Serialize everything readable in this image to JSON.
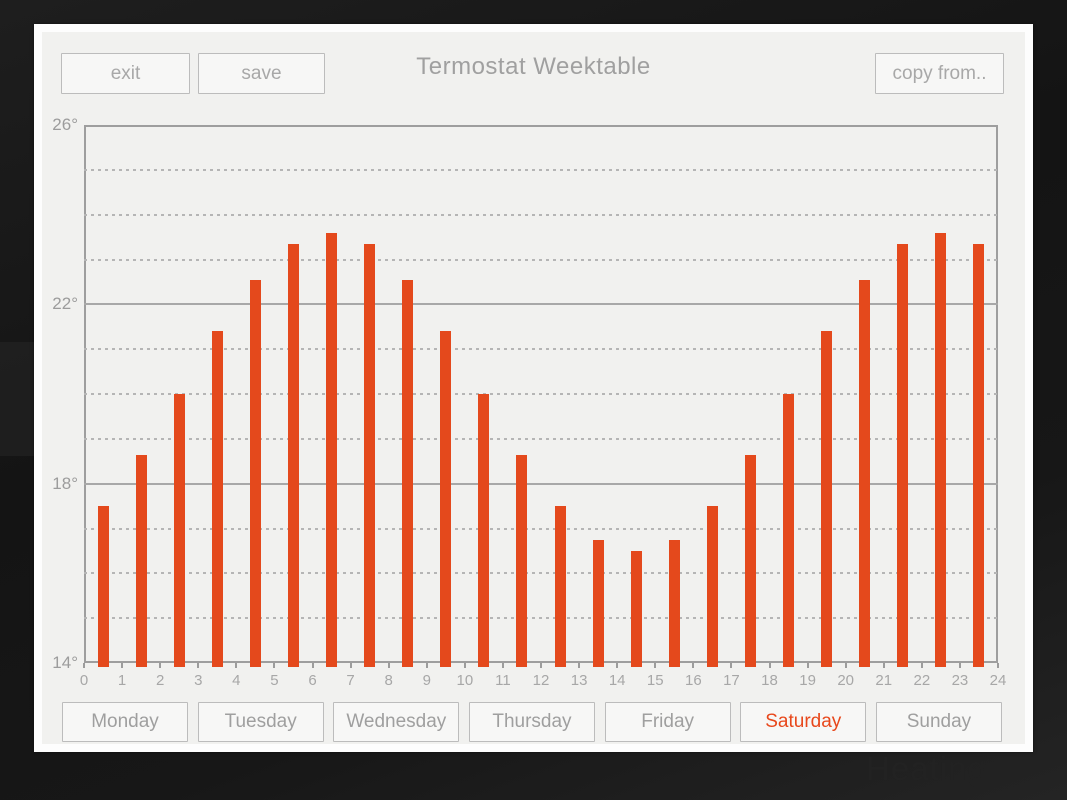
{
  "header": {
    "title": "Termostat Weektable",
    "exit_label": "exit",
    "save_label": "save",
    "copy_from_label": "copy from.."
  },
  "background_watermark": "Heating",
  "days": [
    {
      "label": "Monday",
      "selected": false
    },
    {
      "label": "Tuesday",
      "selected": false
    },
    {
      "label": "Wednesday",
      "selected": false
    },
    {
      "label": "Thursday",
      "selected": false
    },
    {
      "label": "Friday",
      "selected": false
    },
    {
      "label": "Saturday",
      "selected": true
    },
    {
      "label": "Sunday",
      "selected": false
    }
  ],
  "colors": {
    "accent": "#e8481c",
    "bar": "#e4491c",
    "panel_bg": "#f1f1ef",
    "button_bg": "#f7f7f6",
    "button_border": "#bcbcbc",
    "muted_text": "#a3a3a3",
    "axis_gray": "#9e9e9e"
  },
  "chart_data": {
    "type": "bar",
    "title": "",
    "xlabel": "",
    "ylabel": "",
    "hours": [
      0,
      1,
      2,
      3,
      4,
      5,
      6,
      7,
      8,
      9,
      10,
      11,
      12,
      13,
      14,
      15,
      16,
      17,
      18,
      19,
      20,
      21,
      22,
      23
    ],
    "values": [
      17.5,
      18.65,
      20.0,
      21.4,
      22.55,
      23.35,
      23.6,
      23.35,
      22.55,
      21.4,
      20.0,
      18.65,
      17.5,
      16.75,
      16.5,
      16.75,
      17.5,
      18.65,
      20.0,
      21.4,
      22.55,
      23.35,
      23.6,
      23.35
    ],
    "bar_center_offset": 0.5,
    "ylim": [
      14,
      26
    ],
    "yticks_major": [
      26,
      22,
      18,
      14
    ],
    "ytick_labels": [
      "26°",
      "22°",
      "18°",
      "14°"
    ],
    "yticks_minor": [
      25,
      24,
      23,
      21,
      20,
      19,
      17,
      16,
      15
    ],
    "xticks": [
      0,
      1,
      2,
      3,
      4,
      5,
      6,
      7,
      8,
      9,
      10,
      11,
      12,
      13,
      14,
      15,
      16,
      17,
      18,
      19,
      20,
      21,
      22,
      23,
      24
    ],
    "grid": "major solid, minor dashed horizontal",
    "legend": "none",
    "bar_color": "#e4491c"
  }
}
